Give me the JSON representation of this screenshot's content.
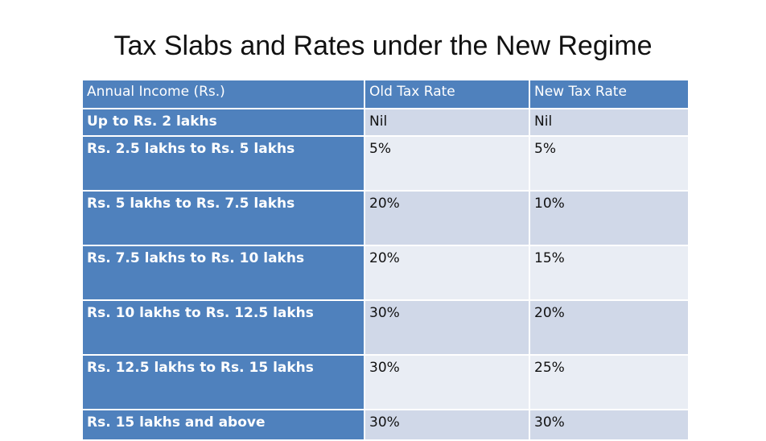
{
  "title": "Tax Slabs and Rates under the New Regime",
  "table": {
    "headers": [
      "Annual Income (Rs.)",
      "Old Tax Rate",
      "New Tax Rate"
    ],
    "rows": [
      [
        "Up to Rs. 2 lakhs",
        "Nil",
        "Nil"
      ],
      [
        "Rs. 2.5 lakhs to Rs. 5 lakhs",
        "5%",
        "5%"
      ],
      [
        "Rs. 5 lakhs to Rs. 7.5 lakhs",
        "20%",
        "10%"
      ],
      [
        "Rs. 7.5 lakhs to Rs. 10 lakhs",
        "20%",
        "15%"
      ],
      [
        "Rs. 10 lakhs to Rs. 12.5 lakhs",
        "30%",
        "20%"
      ],
      [
        "Rs. 12.5 lakhs to Rs. 15 lakhs",
        "30%",
        "25%"
      ],
      [
        "Rs. 15 lakhs and above",
        "30%",
        "30%"
      ]
    ]
  },
  "colors": {
    "header_bg": "#4f81bd",
    "row_band_dark": "#d0d8e8",
    "row_band_light": "#e9edf4"
  }
}
